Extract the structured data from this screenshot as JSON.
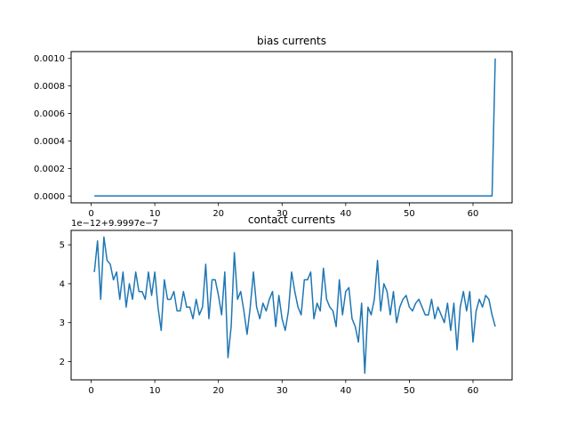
{
  "chart_data": [
    {
      "type": "line",
      "title": "bias currents",
      "xlim": [
        -3.15,
        66.15
      ],
      "ylim": [
        -5e-05,
        0.00105
      ],
      "xticks": [
        0,
        10,
        20,
        30,
        40,
        50,
        60
      ],
      "yticks": [
        0.0,
        0.0002,
        0.0004,
        0.0006,
        0.0008,
        0.001
      ],
      "ytick_labels": [
        "0.0000",
        "0.0002",
        "0.0004",
        "0.0006",
        "0.0008",
        "0.0010"
      ],
      "color": "#1f77b4",
      "series": [
        {
          "x": [
            0.5,
            63.0,
            63.5
          ],
          "y": [
            0.0,
            0.0,
            0.001
          ]
        }
      ]
    },
    {
      "type": "line",
      "title": "contact currents",
      "offset_label": "1e−12+9.9997e−7",
      "xlim": [
        -3.15,
        66.15
      ],
      "ylim": [
        1.53,
        5.37
      ],
      "xticks": [
        0,
        10,
        20,
        30,
        40,
        50,
        60
      ],
      "yticks": [
        2,
        3,
        4,
        5
      ],
      "color": "#1f77b4",
      "series": [
        {
          "x_start": 0.5,
          "x_step": 0.5,
          "y": [
            4.3,
            5.1,
            3.6,
            5.2,
            4.6,
            4.5,
            4.1,
            4.3,
            3.6,
            4.3,
            3.4,
            4.0,
            3.6,
            4.3,
            3.8,
            3.8,
            3.6,
            4.3,
            3.7,
            4.3,
            3.4,
            2.8,
            4.1,
            3.6,
            3.6,
            3.8,
            3.3,
            3.3,
            3.8,
            3.4,
            3.4,
            3.1,
            3.6,
            3.2,
            3.4,
            4.5,
            3.1,
            4.1,
            4.1,
            3.7,
            3.2,
            4.3,
            2.1,
            2.9,
            4.8,
            3.6,
            3.8,
            3.3,
            2.7,
            3.4,
            4.3,
            3.4,
            3.1,
            3.5,
            3.3,
            3.6,
            3.8,
            2.9,
            3.7,
            3.1,
            2.8,
            3.3,
            4.3,
            3.8,
            3.4,
            3.2,
            4.1,
            4.1,
            4.3,
            3.1,
            3.5,
            3.3,
            4.4,
            3.6,
            3.4,
            3.3,
            2.9,
            4.1,
            3.2,
            3.8,
            3.9,
            3.1,
            2.9,
            2.5,
            3.5,
            1.7,
            3.4,
            3.2,
            3.6,
            4.6,
            3.3,
            4.0,
            3.8,
            3.2,
            3.8,
            3.0,
            3.4,
            3.6,
            3.7,
            3.4,
            3.3,
            3.5,
            3.6,
            3.4,
            3.2,
            3.2,
            3.6,
            3.1,
            3.4,
            3.2,
            3.0,
            3.5,
            2.8,
            3.5,
            2.3,
            3.4,
            3.8,
            3.3,
            3.8,
            2.5,
            3.3,
            3.6,
            3.4,
            3.7,
            3.6,
            3.2,
            2.9
          ]
        }
      ]
    }
  ]
}
